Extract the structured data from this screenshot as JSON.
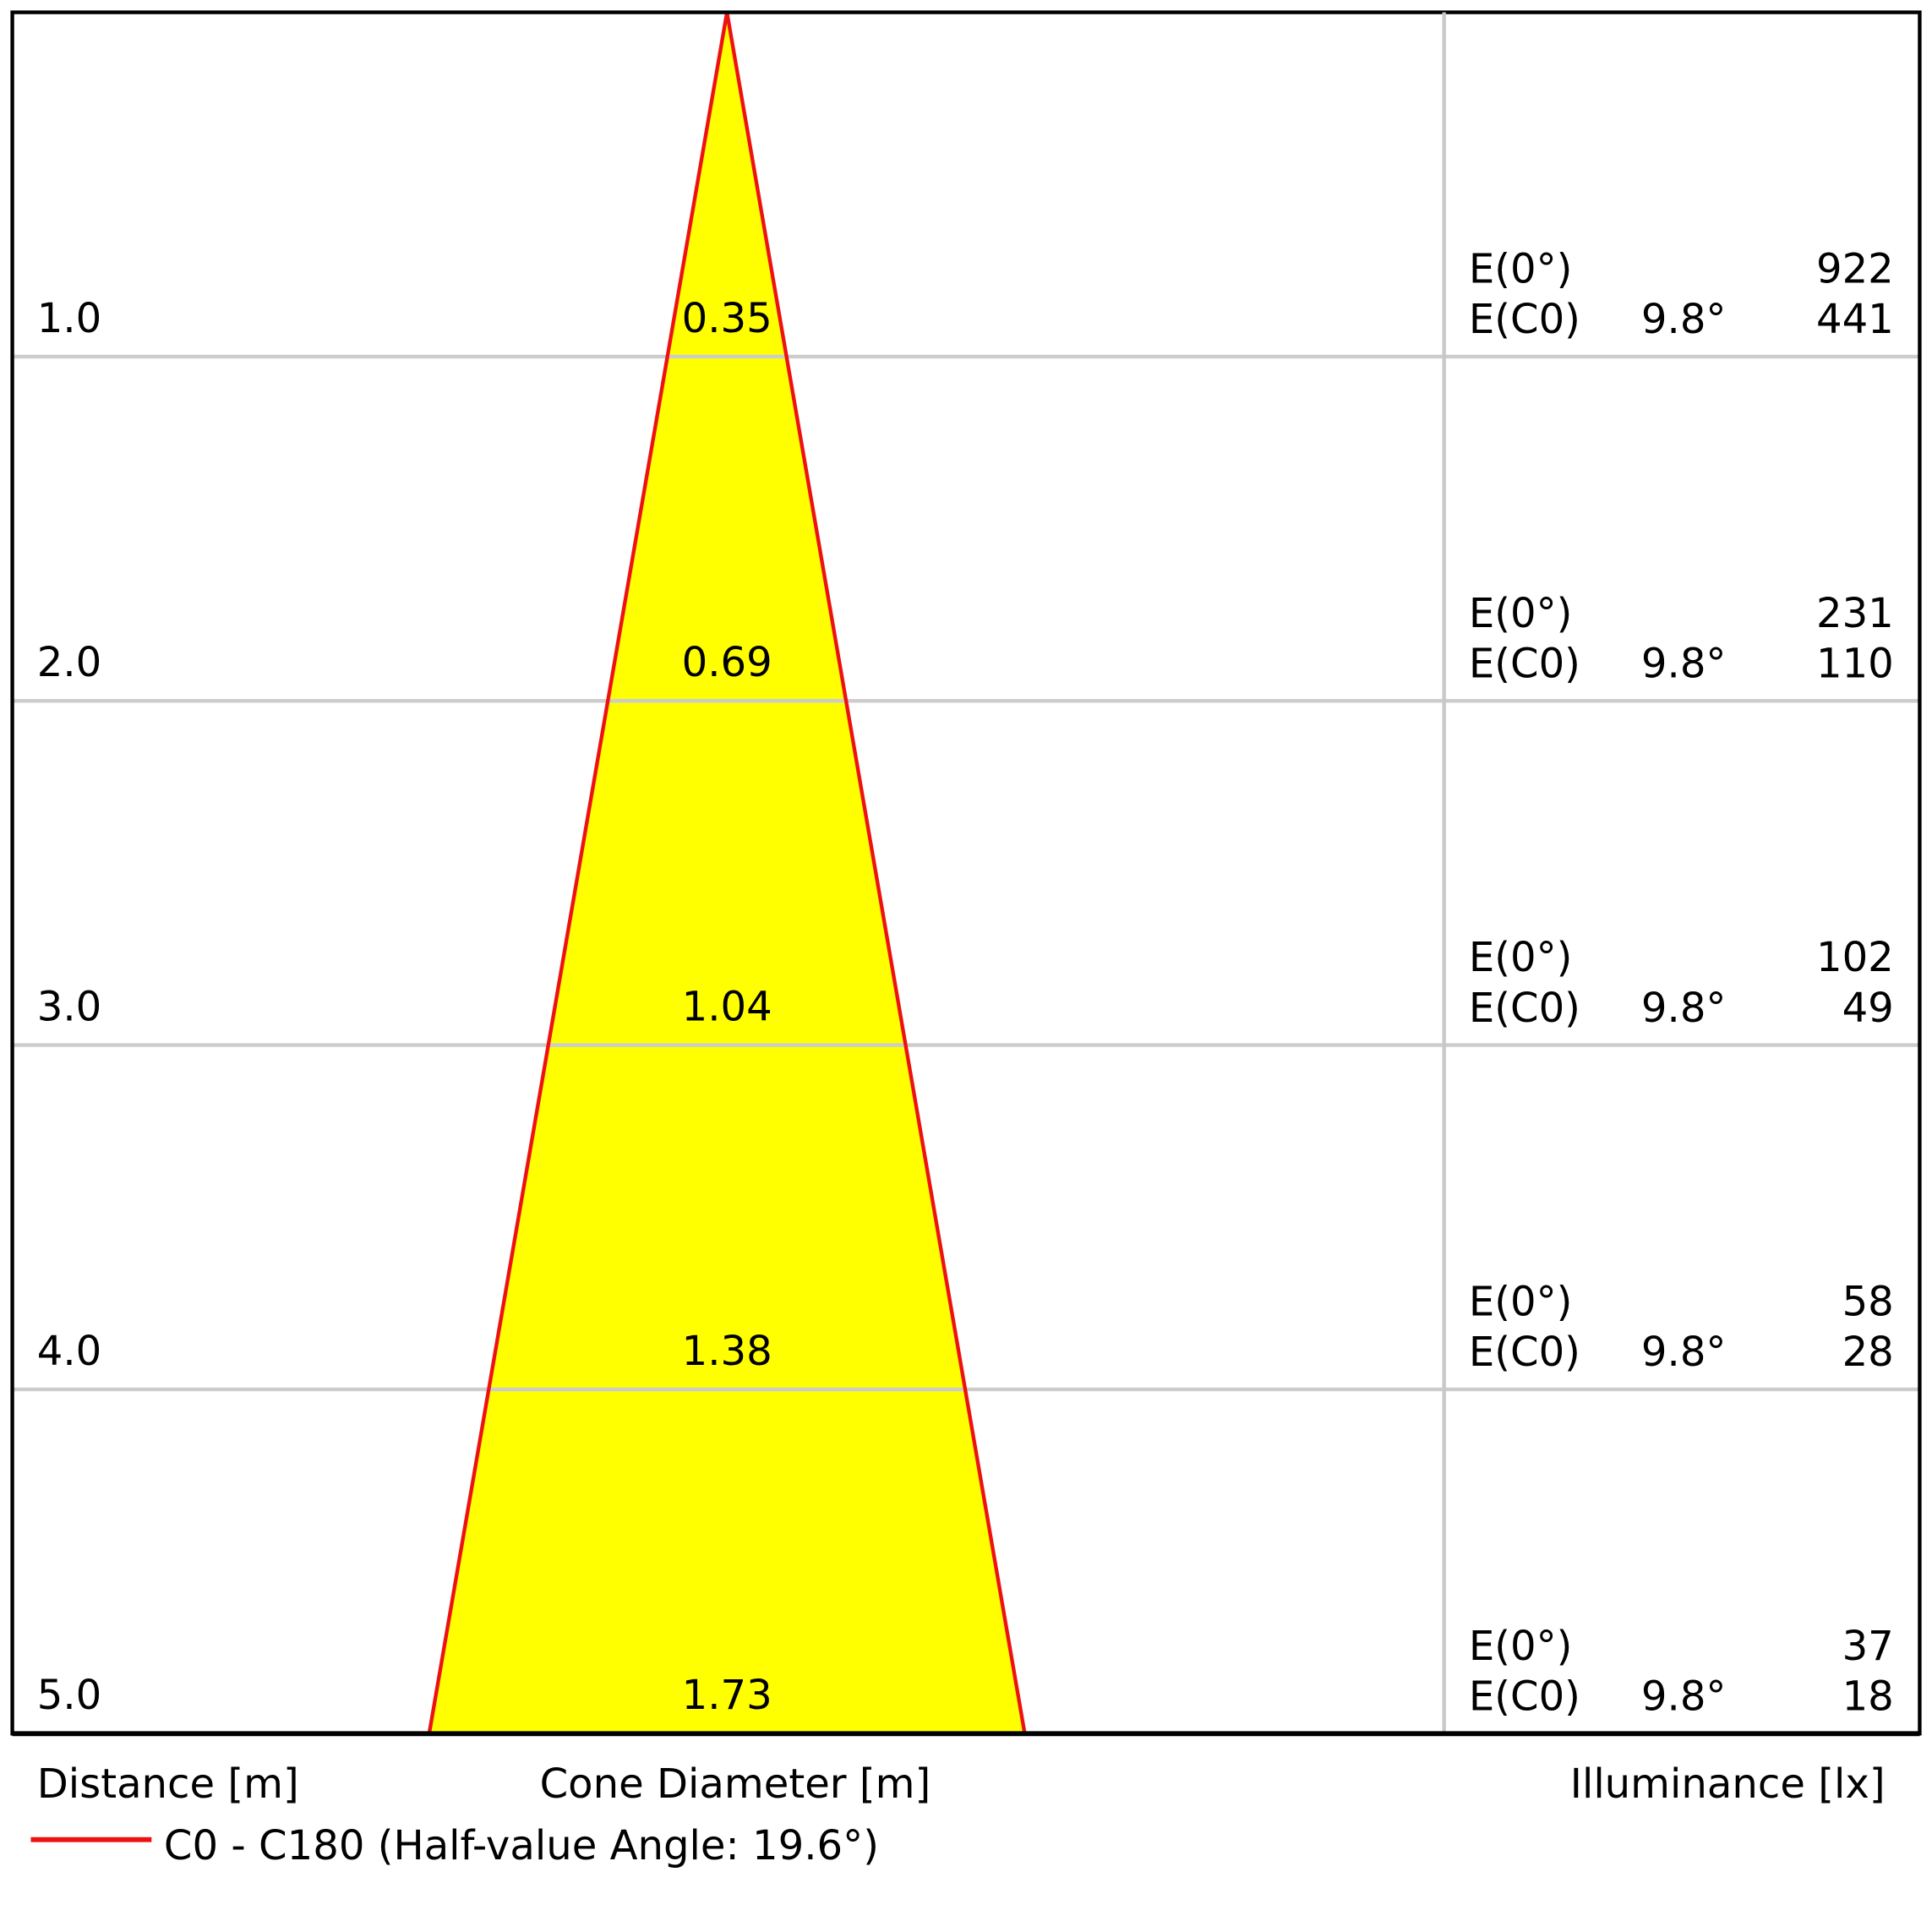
{
  "chart_data": {
    "type": "cone-diagram",
    "distance_label": "Distance [m]",
    "diameter_label": "Cone Diameter [m]",
    "illuminance_label": "Illuminance [lx]",
    "legend": "C0 - C180 (Half-value Angle: 19.6°)",
    "line_color": "#ee1111",
    "fill_color": "#ffff00",
    "e0_label": "E(0°)",
    "ec0_label": "E(C0)",
    "rows": [
      {
        "distance": "1.0",
        "diameter": "0.35",
        "angle": "9.8°",
        "e0": "922",
        "ec0": "441"
      },
      {
        "distance": "2.0",
        "diameter": "0.69",
        "angle": "9.8°",
        "e0": "231",
        "ec0": "110"
      },
      {
        "distance": "3.0",
        "diameter": "1.04",
        "angle": "9.8°",
        "e0": "102",
        "ec0": "49"
      },
      {
        "distance": "4.0",
        "diameter": "1.38",
        "angle": "9.8°",
        "e0": "58",
        "ec0": "28"
      },
      {
        "distance": "5.0",
        "diameter": "1.73",
        "angle": "9.8°",
        "e0": "37",
        "ec0": "18"
      }
    ]
  }
}
